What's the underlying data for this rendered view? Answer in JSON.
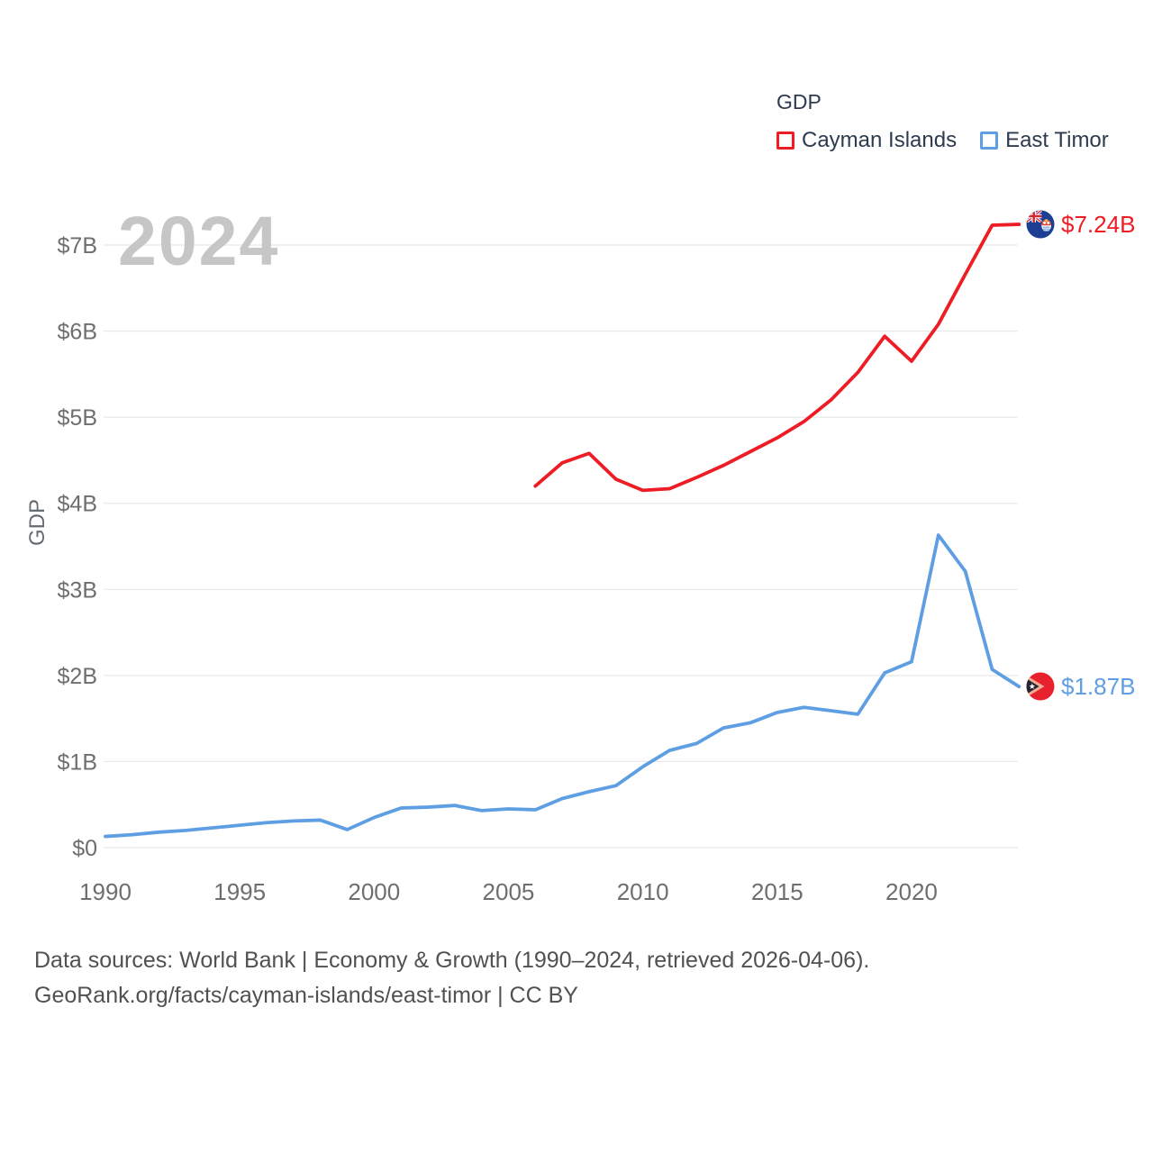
{
  "watermark_year": "2024",
  "legend": {
    "title": "GDP"
  },
  "footer": {
    "line1": "Data sources: World Bank | Economy & Growth (1990–2024, retrieved 2026-04-06).",
    "line2": "GeoRank.org/facts/cayman-islands/east-timor | CC BY"
  },
  "chart_data": {
    "type": "line",
    "title": "GDP",
    "ylabel": "GDP",
    "xlim": [
      1990,
      2024
    ],
    "ylim": [
      0,
      7.6
    ],
    "grid": "horizontal",
    "legend_position": "top-right",
    "xticks": [
      1990,
      1995,
      2000,
      2005,
      2010,
      2015,
      2020
    ],
    "yticks": {
      "values": [
        0,
        1,
        2,
        3,
        4,
        5,
        6,
        7
      ],
      "labels": [
        "$0",
        "$1B",
        "$2B",
        "$3B",
        "$4B",
        "$5B",
        "$6B",
        "$7B"
      ]
    },
    "series": [
      {
        "name": "Cayman Islands",
        "color": "#ee1c24",
        "end_label": "$7.24B",
        "end_value": 7.24,
        "x": [
          2006,
          2007,
          2008,
          2009,
          2010,
          2011,
          2012,
          2013,
          2014,
          2015,
          2016,
          2017,
          2018,
          2019,
          2020,
          2021,
          2022,
          2023,
          2024
        ],
        "values": [
          4.2,
          4.47,
          4.58,
          4.28,
          4.15,
          4.17,
          4.3,
          4.44,
          4.6,
          4.76,
          4.95,
          5.2,
          5.52,
          5.94,
          5.65,
          6.08,
          6.66,
          7.23,
          7.24
        ]
      },
      {
        "name": "East Timor",
        "color": "#5e9ee3",
        "end_label": "$1.87B",
        "end_value": 1.87,
        "x": [
          1990,
          1991,
          1992,
          1993,
          1994,
          1995,
          1996,
          1997,
          1998,
          1999,
          2000,
          2001,
          2002,
          2003,
          2004,
          2005,
          2006,
          2007,
          2008,
          2009,
          2010,
          2011,
          2012,
          2013,
          2014,
          2015,
          2016,
          2017,
          2018,
          2019,
          2020,
          2021,
          2022,
          2023,
          2024
        ],
        "values": [
          0.13,
          0.15,
          0.18,
          0.2,
          0.23,
          0.26,
          0.29,
          0.31,
          0.32,
          0.21,
          0.35,
          0.46,
          0.47,
          0.49,
          0.43,
          0.45,
          0.44,
          0.57,
          0.65,
          0.72,
          0.94,
          1.13,
          1.21,
          1.39,
          1.45,
          1.57,
          1.63,
          1.59,
          1.55,
          2.03,
          2.16,
          3.63,
          3.21,
          2.07,
          1.87
        ]
      }
    ]
  }
}
